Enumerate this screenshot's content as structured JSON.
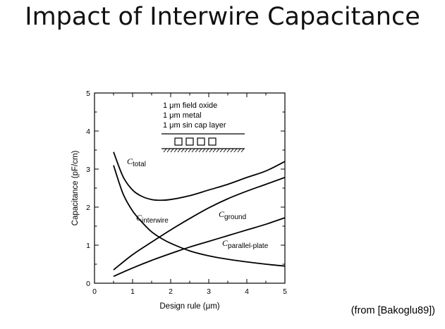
{
  "title": "Impact of Interwire Capacitance",
  "citation": "(from [Bakoglu89])",
  "inset": {
    "lines": [
      "1 μm field oxide",
      "1 μm metal",
      "1 μm sin cap layer"
    ]
  },
  "chart_data": {
    "type": "line",
    "title": "",
    "xlabel": "Design rule (μm)",
    "ylabel": "Capacitance (pF/cm)",
    "xlim": [
      0,
      5
    ],
    "ylim": [
      0,
      5
    ],
    "xticks": [
      "0",
      "1",
      "2",
      "3",
      "4",
      "5"
    ],
    "yticks": [
      "0",
      "1",
      "2",
      "3",
      "4",
      "5"
    ],
    "grid": false,
    "series": [
      {
        "name": "C total",
        "label_prefix": "C",
        "label_sub": "total",
        "x": [
          0.5,
          0.75,
          1.0,
          1.25,
          1.5,
          1.75,
          2.0,
          2.5,
          3.0,
          3.5,
          4.0,
          4.5,
          5.0
        ],
        "y": [
          3.45,
          2.8,
          2.45,
          2.28,
          2.2,
          2.18,
          2.2,
          2.3,
          2.45,
          2.6,
          2.78,
          2.95,
          3.2
        ]
      },
      {
        "name": "C interwire",
        "label_prefix": "C",
        "label_sub": "interwire",
        "x": [
          0.5,
          0.75,
          1.0,
          1.25,
          1.5,
          1.75,
          2.0,
          2.5,
          3.0,
          3.5,
          4.0,
          4.5,
          5.0
        ],
        "y": [
          3.1,
          2.35,
          1.9,
          1.6,
          1.35,
          1.18,
          1.05,
          0.85,
          0.72,
          0.63,
          0.56,
          0.5,
          0.45
        ]
      },
      {
        "name": "C ground",
        "label_prefix": "C",
        "label_sub": "ground",
        "x": [
          0.5,
          1.0,
          1.5,
          2.0,
          2.5,
          3.0,
          3.5,
          4.0,
          4.5,
          5.0
        ],
        "y": [
          0.35,
          0.75,
          1.08,
          1.4,
          1.7,
          1.98,
          2.22,
          2.42,
          2.6,
          2.78
        ]
      },
      {
        "name": "C parallel-plate",
        "label_prefix": "C",
        "label_sub": "parallel-plate",
        "x": [
          0.5,
          1.0,
          1.5,
          2.0,
          2.5,
          3.0,
          3.5,
          4.0,
          4.5,
          5.0
        ],
        "y": [
          0.18,
          0.4,
          0.6,
          0.78,
          0.95,
          1.1,
          1.25,
          1.4,
          1.55,
          1.72
        ]
      }
    ]
  }
}
